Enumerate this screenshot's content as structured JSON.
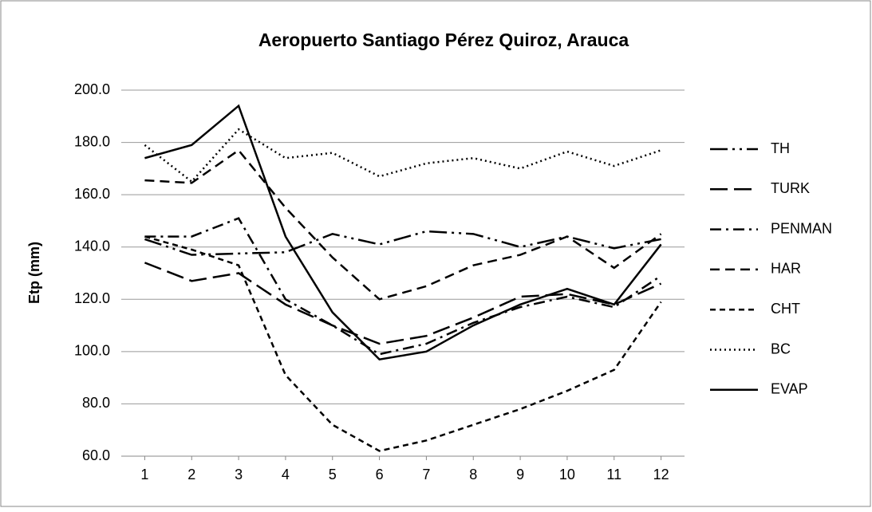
{
  "chart_data": {
    "type": "line",
    "title": "Aeropuerto Santiago Pérez Quiroz, Arauca",
    "y_label": "Etp (mm)",
    "x": [
      1,
      2,
      3,
      4,
      5,
      6,
      7,
      8,
      9,
      10,
      11,
      12
    ],
    "xlim": [
      0.5,
      12.5
    ],
    "xticks": [
      1,
      2,
      3,
      4,
      5,
      6,
      7,
      8,
      9,
      10,
      11,
      12
    ],
    "ylim": [
      60,
      200
    ],
    "yticks": [
      {
        "value": 60,
        "label": "60.0"
      },
      {
        "value": 80,
        "label": "80.0"
      },
      {
        "value": 100,
        "label": "100.0"
      },
      {
        "value": 120,
        "label": "120.0"
      },
      {
        "value": 140,
        "label": "140.0"
      },
      {
        "value": 160,
        "label": "160.0"
      },
      {
        "value": 180,
        "label": "180.0"
      },
      {
        "value": 200,
        "label": "200.0"
      }
    ],
    "grid": true,
    "legend": "right",
    "series": [
      {
        "name": "TH",
        "color": "#000000",
        "dash": "long-dash-dot-dot",
        "values": [
          143,
          137,
          137.5,
          138,
          145,
          141,
          146,
          145,
          140,
          144,
          139.5,
          143
        ]
      },
      {
        "name": "TURK",
        "color": "#000000",
        "dash": "long-dash",
        "values": [
          134,
          127,
          130,
          118,
          110,
          103,
          106,
          113,
          121,
          122,
          118,
          126
        ]
      },
      {
        "name": "PENMAN",
        "color": "#000000",
        "dash": "dash-dot",
        "values": [
          144,
          144,
          151,
          120,
          110,
          99,
          103,
          111,
          117,
          121,
          117,
          129
        ]
      },
      {
        "name": "HAR",
        "color": "#000000",
        "dash": "dash",
        "values": [
          165.5,
          164.5,
          177,
          155,
          136,
          120,
          125,
          133,
          137,
          144,
          132,
          145
        ]
      },
      {
        "name": "CHT",
        "color": "#000000",
        "dash": "short-dash",
        "values": [
          144,
          139,
          133,
          91,
          72,
          62,
          66,
          72,
          78,
          85,
          93,
          119
        ]
      },
      {
        "name": "BC",
        "color": "#000000",
        "dash": "dot",
        "values": [
          179,
          165,
          185,
          174,
          176,
          167,
          172,
          174,
          170,
          176.5,
          171,
          177
        ]
      },
      {
        "name": "EVAP",
        "color": "#000000",
        "dash": "solid",
        "values": [
          174,
          179,
          194,
          144,
          115,
          97,
          100,
          110,
          118,
          124,
          118,
          141
        ]
      }
    ]
  }
}
